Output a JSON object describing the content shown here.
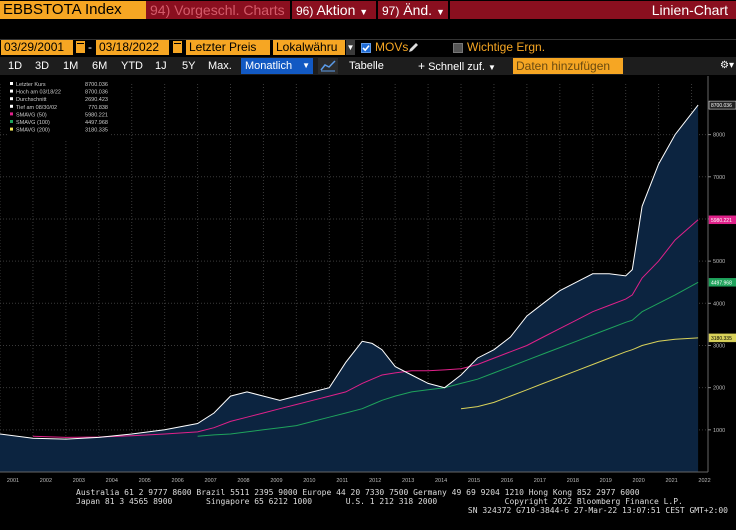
{
  "header": {
    "ticker": "EBBSTOTA Index",
    "btn_vorgeschl": "94) Vorgeschl. Charts",
    "btn_aktion_num": "96)",
    "btn_aktion": "Aktion",
    "btn_aend_num": "97)",
    "btn_aend": "Änd.",
    "view_title": "Linien-Chart"
  },
  "settings": {
    "start_date": "03/29/2001",
    "sep": "-",
    "end_date": "03/18/2022",
    "price_type": "Letzter Preis",
    "currency": "Lokalwähru",
    "movs_label": "MOVs",
    "events_label": "Wichtige Ergn."
  },
  "toolbar": {
    "ranges": [
      "1D",
      "3D",
      "1M",
      "6M",
      "YTD",
      "1J",
      "5Y",
      "Max."
    ],
    "period": "Monatlich",
    "table": "Tabelle",
    "quick": "Schnell zuf.",
    "add_data": "Daten hinzufügen"
  },
  "legend": [
    {
      "label": "Letzter Kurs",
      "value": "8700.036",
      "color": "#ffffff"
    },
    {
      "label": "Hoch am 03/18/22",
      "value": "8700.036",
      "color": "#ffffff"
    },
    {
      "label": "Durchschnitt",
      "value": "2690.423",
      "color": "#ffffff"
    },
    {
      "label": "Tief am 08/30/02",
      "value": "770.838",
      "color": "#ffffff"
    },
    {
      "label": "SMAVG (50)",
      "value": "5980.221",
      "color": "#e0218a"
    },
    {
      "label": "SMAVG (100)",
      "value": "4497.968",
      "color": "#1fa35c"
    },
    {
      "label": "SMAVG (200)",
      "value": "3180.335",
      "color": "#f2e85a"
    }
  ],
  "chart_data": {
    "type": "area",
    "x": [
      2001,
      2002,
      2003,
      2004,
      2005,
      2006,
      2007,
      2007.5,
      2008,
      2008.5,
      2009,
      2009.5,
      2010,
      2010.5,
      2011,
      2011.5,
      2012,
      2012.3,
      2012.6,
      2013,
      2013.5,
      2014,
      2014.5,
      2015,
      2015.5,
      2016,
      2016.5,
      2017,
      2017.5,
      2018,
      2018.5,
      2019,
      2019.5,
      2020,
      2020.2,
      2020.5,
      2021,
      2021.5,
      2022.2
    ],
    "series": [
      {
        "values": [
          900,
          800,
          780,
          820,
          900,
          1000,
          1150,
          1400,
          1800,
          1900,
          1800,
          1700,
          1800,
          1900,
          2000,
          2600,
          3100,
          3050,
          2900,
          2500,
          2300,
          2100,
          2000,
          2300,
          2700,
          2900,
          3200,
          3700,
          4000,
          4300,
          4500,
          4700,
          4700,
          4650,
          4800,
          6300,
          7300,
          8000,
          8700
        ]
      },
      {
        "values": [
          null,
          850,
          820,
          830,
          860,
          900,
          950,
          1050,
          1200,
          1300,
          1400,
          1500,
          1600,
          1700,
          1800,
          1900,
          2100,
          2200,
          2300,
          2350,
          2400,
          2400,
          2420,
          2450,
          2550,
          2700,
          2850,
          3000,
          3200,
          3400,
          3600,
          3800,
          3950,
          4100,
          4200,
          4600,
          5000,
          5500,
          5980
        ]
      },
      {
        "values": [
          null,
          null,
          null,
          null,
          null,
          null,
          850,
          880,
          900,
          950,
          1000,
          1050,
          1100,
          1200,
          1300,
          1400,
          1500,
          1600,
          1700,
          1800,
          1900,
          1950,
          2000,
          2100,
          2200,
          2350,
          2500,
          2650,
          2800,
          2950,
          3100,
          3250,
          3400,
          3550,
          3600,
          3800,
          4000,
          4200,
          4498
        ]
      },
      {
        "values": [
          null,
          null,
          null,
          null,
          null,
          null,
          null,
          null,
          null,
          null,
          null,
          null,
          null,
          null,
          null,
          null,
          null,
          null,
          null,
          null,
          null,
          null,
          null,
          1500,
          1550,
          1650,
          1800,
          1950,
          2100,
          2250,
          2400,
          2550,
          2700,
          2850,
          2900,
          3000,
          3100,
          3150,
          3180
        ]
      }
    ],
    "xlim": [
      2001,
      2022.5
    ],
    "ylim": [
      0,
      9200
    ],
    "yticks": [
      1000,
      2000,
      3000,
      4000,
      5000,
      6000,
      7000,
      8000
    ],
    "xticks": [
      "2001",
      "2002",
      "2003",
      "2004",
      "2005",
      "2006",
      "2007",
      "2008",
      "2009",
      "2010",
      "2011",
      "2012",
      "2013",
      "2014",
      "2015",
      "2016",
      "2017",
      "2018",
      "2019",
      "2020",
      "2021",
      "2022"
    ],
    "tags": [
      "8700.036",
      "5980.221",
      "4497.968",
      "3180.335"
    ],
    "colors": {
      "price": "#ffffff",
      "fill": "#0c2440",
      "sma50": "#e0218a",
      "sma100": "#1fa35c",
      "sma200": "#d9d25a"
    }
  },
  "footer": {
    "line1": "Australia 61 2 9777 8600 Brazil 5511 2395 9000 Europe 44 20 7330 7500 Germany 49 69 9204 1210 Hong Kong 852 2977 6000",
    "line2": "Japan 81 3 4565 8900       Singapore 65 6212 1000       U.S. 1 212 318 2000              Copyright 2022 Bloomberg Finance L.P.",
    "line3": "SN 324372 G710-3844-6 27-Mar-22 13:07:51 CEST GMT+2:00"
  }
}
